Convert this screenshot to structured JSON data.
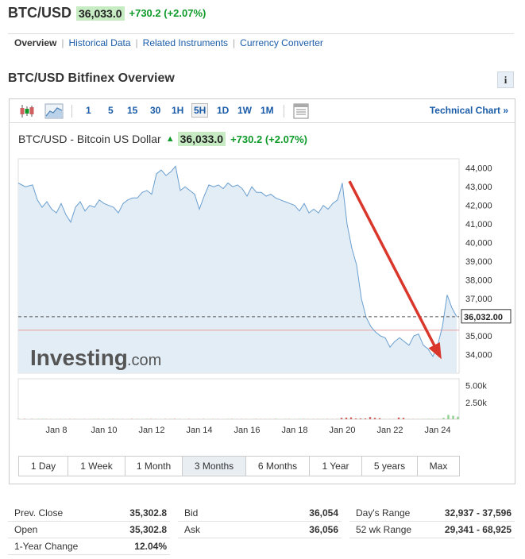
{
  "header": {
    "symbol": "BTC/USD",
    "last": "36,033.0",
    "change": "+730.2",
    "change_pct": "(+2.07%)"
  },
  "nav": {
    "tabs": [
      {
        "label": "Overview",
        "active": true
      },
      {
        "label": "Historical Data",
        "active": false
      },
      {
        "label": "Related Instruments",
        "active": false
      },
      {
        "label": "Currency Converter",
        "active": false
      }
    ]
  },
  "overview_title": "BTC/USD Bitfinex Overview",
  "info_label": "i",
  "toolbar": {
    "icons": [
      "candlestick-icon",
      "area-chart-icon",
      "table-icon"
    ],
    "intervals": [
      "1",
      "5",
      "15",
      "30",
      "1H",
      "5H",
      "1D",
      "1W",
      "1M"
    ],
    "selected_interval": "5H",
    "technical_link": "Technical Chart »"
  },
  "chart_caption": {
    "name": "BTC/USD - Bitcoin US Dollar",
    "last": "36,033.0",
    "change": "+730.2",
    "change_pct": "(+2.07%)"
  },
  "watermark": {
    "brand": "Investing",
    "suffix": ".com"
  },
  "colors": {
    "accent_green": "#0e9a29",
    "price_line": "#6a9fd0",
    "price_fill": "#e3edf6",
    "volume_up": "#8ed08e",
    "volume_down": "#d06060",
    "arrow": "#d9372b",
    "prev_close_line": "#e8a0a0",
    "link": "#1a5ca8"
  },
  "chart_data": {
    "type": "line",
    "ylim": [
      33000,
      44500
    ],
    "y_ticks": [
      "44,000",
      "43,000",
      "42,000",
      "41,000",
      "40,000",
      "39,000",
      "38,000",
      "37,000",
      "35,000",
      "34,000"
    ],
    "y_tick_values": [
      44000,
      43000,
      42000,
      41000,
      40000,
      39000,
      38000,
      37000,
      35000,
      34000
    ],
    "x_ticks": [
      "Jan 8",
      "Jan 10",
      "Jan 12",
      "Jan 14",
      "Jan 16",
      "Jan 18",
      "Jan 20",
      "Jan 22",
      "Jan 24"
    ],
    "x_tick_positions": [
      8,
      10,
      12,
      14,
      16,
      18,
      20,
      22,
      24
    ],
    "x_range": [
      6.4,
      24.9
    ],
    "current_price_label": "36,032.00",
    "current_price": 36032,
    "prev_close": 35302.8,
    "series": [
      {
        "x": [
          6.4,
          6.7,
          7.0,
          7.2,
          7.4,
          7.6,
          7.8,
          8.0,
          8.2,
          8.4,
          8.6,
          8.8,
          9.0,
          9.2,
          9.4,
          9.6,
          9.8,
          10.0,
          10.2,
          10.4,
          10.6,
          10.8,
          11.0,
          11.2,
          11.4,
          11.6,
          11.8,
          12.0,
          12.2,
          12.4,
          12.6,
          12.8,
          13.0,
          13.2,
          13.4,
          13.6,
          13.8,
          14.0,
          14.2,
          14.4,
          14.6,
          14.8,
          15.0,
          15.2,
          15.4,
          15.6,
          15.8,
          16.0,
          16.2,
          16.4,
          16.6,
          16.8,
          17.0,
          17.2,
          17.4,
          17.6,
          17.8,
          18.0,
          18.2,
          18.4,
          18.6,
          18.8,
          19.0,
          19.2,
          19.4,
          19.6,
          19.8,
          20.0,
          20.2,
          20.4,
          20.6,
          20.8,
          21.0,
          21.2,
          21.4,
          21.6,
          21.8,
          22.0,
          22.2,
          22.4,
          22.6,
          22.8,
          23.0,
          23.2,
          23.4,
          23.6,
          23.8,
          24.0,
          24.2,
          24.4,
          24.6,
          24.8
        ],
        "y": [
          43200,
          43000,
          43100,
          42300,
          41900,
          42200,
          41800,
          41600,
          42100,
          41500,
          41100,
          41900,
          42200,
          41700,
          42000,
          41900,
          42300,
          42100,
          42000,
          41900,
          41600,
          42100,
          42300,
          42400,
          42400,
          42700,
          42800,
          42600,
          43700,
          43900,
          43600,
          43800,
          44100,
          42800,
          43000,
          42800,
          42600,
          41800,
          42500,
          43100,
          43000,
          43100,
          42900,
          43200,
          43000,
          43100,
          42900,
          42500,
          43000,
          42700,
          42700,
          42500,
          42600,
          42400,
          42300,
          42200,
          42100,
          42000,
          41700,
          42100,
          41600,
          41800,
          41600,
          42000,
          41800,
          42100,
          42300,
          43200,
          41000,
          39700,
          38800,
          37000,
          36000,
          35500,
          35200,
          35000,
          34900,
          34400,
          34700,
          34900,
          34700,
          34500,
          35000,
          35100,
          34500,
          34300,
          33900,
          34500,
          35500,
          37200,
          36500,
          36033
        ],
        "volume_up": [
          30,
          10,
          20,
          60,
          40,
          10,
          15,
          20,
          10,
          15,
          20,
          10,
          20,
          15,
          35,
          30,
          10,
          20,
          40,
          20,
          15,
          10,
          20,
          10,
          30,
          20,
          35,
          20,
          10,
          15,
          10,
          40,
          10,
          20,
          15,
          10,
          20,
          10,
          15,
          30,
          20,
          10,
          20,
          25,
          15,
          10,
          20,
          10,
          30,
          20,
          15,
          10,
          20,
          60,
          20,
          30,
          10,
          20,
          40,
          30,
          10,
          20,
          30,
          20,
          10,
          15,
          20,
          30,
          20,
          20,
          40,
          20,
          30,
          20,
          20,
          20,
          20,
          20,
          20,
          20,
          20,
          20,
          20,
          20,
          40,
          60,
          20,
          40,
          200,
          640,
          520,
          380
        ],
        "volume_down": [
          20,
          40,
          30,
          10,
          20,
          30,
          20,
          10,
          20,
          15,
          30,
          20,
          10,
          20,
          10,
          20,
          30,
          20,
          10,
          30,
          20,
          20,
          10,
          40,
          20,
          10,
          20,
          30,
          20,
          10,
          30,
          20,
          40,
          20,
          10,
          30,
          10,
          20,
          30,
          10,
          20,
          20,
          10,
          20,
          30,
          20,
          20,
          20,
          10,
          30,
          20,
          20,
          20,
          30,
          10,
          20,
          30,
          10,
          20,
          30,
          20,
          20,
          20,
          20,
          30,
          20,
          20,
          210,
          250,
          280,
          120,
          120,
          120,
          330,
          210,
          160,
          20,
          20,
          20,
          260,
          210,
          20,
          20,
          20,
          20,
          20,
          20,
          20,
          20,
          20,
          20,
          20
        ]
      }
    ],
    "volume_ticks": [
      "5.00k",
      "2.50k"
    ],
    "volume_tick_values": [
      5000,
      2500
    ],
    "volume_max": 6000,
    "annotations": [
      "downward-trend-arrow"
    ]
  },
  "ranges": [
    {
      "label": "1 Day",
      "selected": false
    },
    {
      "label": "1 Week",
      "selected": false
    },
    {
      "label": "1 Month",
      "selected": false
    },
    {
      "label": "3 Months",
      "selected": true
    },
    {
      "label": "6 Months",
      "selected": false
    },
    {
      "label": "1 Year",
      "selected": false
    },
    {
      "label": "5 years",
      "selected": false
    },
    {
      "label": "Max",
      "selected": false
    }
  ],
  "stats": {
    "col1": [
      {
        "label": "Prev. Close",
        "value": "35,302.8"
      },
      {
        "label": "Open",
        "value": "35,302.8"
      },
      {
        "label": "1-Year Change",
        "value": "12.04%"
      }
    ],
    "col2": [
      {
        "label": "Bid",
        "value": "36,054"
      },
      {
        "label": "Ask",
        "value": "36,056"
      }
    ],
    "col3": [
      {
        "label": "Day's Range",
        "value": "32,937 - 37,596"
      },
      {
        "label": "52 wk Range",
        "value": "29,341 - 68,925"
      }
    ]
  }
}
